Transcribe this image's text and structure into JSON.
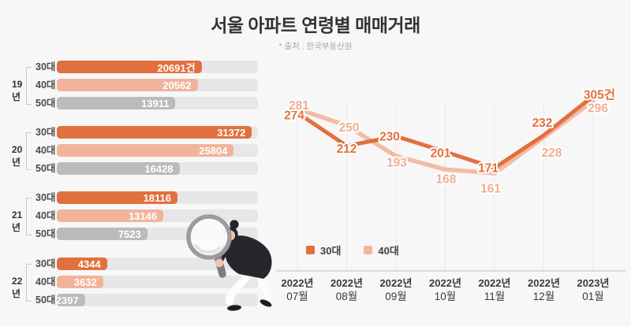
{
  "page": {
    "title": {
      "prefix": "서울 아파트 ",
      "highlight": "연령별",
      "suffix": " 매매거래"
    },
    "source_note": "* 출처 : 한국부동산원"
  },
  "colors": {
    "background": "#F7F7F8",
    "primary_orange": "#E2703E",
    "salmon": "#F0B49C",
    "gray_bar": "#BDBABC",
    "track": "#E7E6E8",
    "gridline": "#E9E8EB",
    "baseline": "#DAD9DC"
  },
  "chart_data": [
    {
      "type": "bar",
      "orientation": "horizontal",
      "unit": "건",
      "series_colors": {
        "30대": "#E2703E",
        "40대": "#F0B49C",
        "50대": "#BDBABC"
      },
      "groups": [
        {
          "year": "19년",
          "rows": [
            {
              "age": "30대",
              "value": 20691,
              "display": "20691건",
              "width_pct": 72
            },
            {
              "age": "40대",
              "value": 20562,
              "display": "20562",
              "width_pct": 70
            },
            {
              "age": "50대",
              "value": 13911,
              "display": "13911",
              "width_pct": 59
            }
          ]
        },
        {
          "year": "20년",
          "rows": [
            {
              "age": "30대",
              "value": 31372,
              "display": "31372",
              "width_pct": 97
            },
            {
              "age": "40대",
              "value": 25804,
              "display": "25804",
              "width_pct": 88
            },
            {
              "age": "50대",
              "value": 16428,
              "display": "16428",
              "width_pct": 61
            }
          ]
        },
        {
          "year": "21년",
          "rows": [
            {
              "age": "30대",
              "value": 18116,
              "display": "18116",
              "width_pct": 60
            },
            {
              "age": "40대",
              "value": 13146,
              "display": "13146",
              "width_pct": 53
            },
            {
              "age": "50대",
              "value": 7523,
              "display": "7523",
              "width_pct": 45
            }
          ]
        },
        {
          "year": "22년",
          "rows": [
            {
              "age": "30대",
              "value": 4344,
              "display": "4344",
              "width_pct": 25
            },
            {
              "age": "40대",
              "value": 3632,
              "display": "3632",
              "width_pct": 23
            },
            {
              "age": "50대",
              "value": 2397,
              "display": "2397",
              "width_pct": 14
            }
          ]
        }
      ]
    },
    {
      "type": "line",
      "x_labels": [
        {
          "year": "2022년",
          "month": "07월"
        },
        {
          "year": "2022년",
          "month": "08월"
        },
        {
          "year": "2022년",
          "month": "09월"
        },
        {
          "year": "2022년",
          "month": "10월"
        },
        {
          "year": "2022년",
          "month": "11월"
        },
        {
          "year": "2022년",
          "month": "12월"
        },
        {
          "year": "2023년",
          "month": "01월"
        }
      ],
      "legend": [
        {
          "label": "30대",
          "color": "#E2703E"
        },
        {
          "label": "40대",
          "color": "#F0B79F"
        }
      ],
      "grid": "vertical",
      "y_range_shown": [
        161,
        305
      ],
      "series": [
        {
          "name": "30대",
          "color": "#E2703E",
          "label_color": "#E2703E",
          "values": [
            274,
            212,
            230,
            201,
            171,
            232,
            305
          ],
          "labels": [
            "274",
            "212",
            "230",
            "201",
            "171",
            "232",
            "305건"
          ]
        },
        {
          "name": "40대",
          "color": "#F2BCA5",
          "label_color": "#EFAE93",
          "values": [
            281,
            250,
            193,
            168,
            161,
            228,
            296
          ],
          "labels": [
            "281",
            "250",
            "193",
            "168",
            "161",
            "228",
            "296"
          ]
        }
      ]
    }
  ]
}
